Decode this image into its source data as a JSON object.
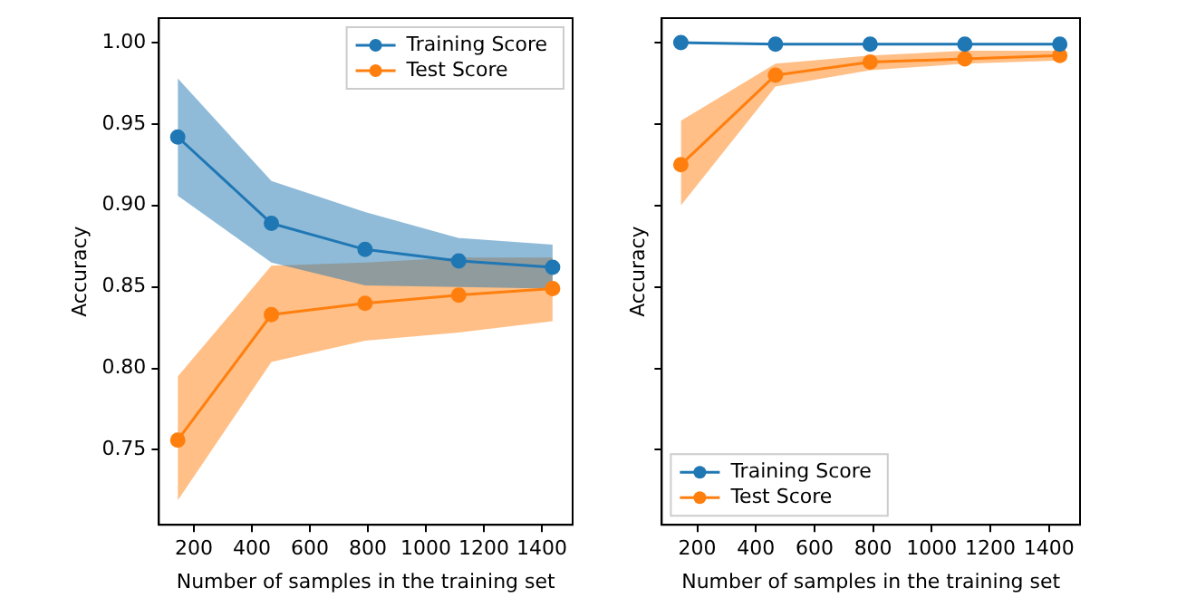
{
  "chart_data": [
    {
      "type": "line",
      "xlabel": "Number of samples in the training set",
      "ylabel": "Accuracy",
      "x": [
        144,
        467,
        790,
        1113,
        1437
      ],
      "xlim": [
        79,
        1506
      ],
      "xticks": [
        200,
        400,
        600,
        800,
        1000,
        1200,
        1400
      ],
      "ylim": [
        0.704,
        1.015
      ],
      "yticks": [
        0.75,
        {
          "value": 0.8,
          "label": "0.80"
        },
        0.85,
        {
          "value": 0.9,
          "label": "0.90"
        },
        0.95,
        {
          "value": 1.0,
          "label": "1.00"
        }
      ],
      "legend": "top right",
      "marker": "circle",
      "grid": false,
      "series": [
        {
          "name": "Training Score",
          "color": "#1f77b4",
          "values": [
            0.942,
            0.889,
            0.873,
            0.866,
            0.862
          ],
          "lower": [
            0.906,
            0.865,
            0.851,
            0.85,
            0.849
          ],
          "upper": [
            0.978,
            0.915,
            0.896,
            0.88,
            0.876
          ]
        },
        {
          "name": "Test Score",
          "color": "#ff7f0e",
          "values": [
            0.756,
            0.833,
            0.84,
            0.845,
            0.849
          ],
          "lower": [
            0.719,
            0.804,
            0.817,
            0.822,
            0.829
          ],
          "upper": [
            0.795,
            0.863,
            0.865,
            0.868,
            0.868
          ]
        }
      ]
    },
    {
      "type": "line",
      "xlabel": "Number of samples in the training set",
      "ylabel": "Accuracy",
      "x": [
        144,
        467,
        790,
        1113,
        1437
      ],
      "xlim": [
        79,
        1506
      ],
      "xticks": [
        200,
        400,
        600,
        800,
        1000,
        1200,
        1400
      ],
      "ylim": [
        0.704,
        1.015
      ],
      "yticks": [
        0.75,
        0.8,
        0.85,
        0.9,
        0.95,
        1.0
      ],
      "tick_labels": "x",
      "legend": "bottom left",
      "marker": "circle",
      "grid": false,
      "series": [
        {
          "name": "Training Score",
          "color": "#1f77b4",
          "values": [
            1.0,
            0.999,
            0.999,
            0.999,
            0.999
          ]
        },
        {
          "name": "Test Score",
          "color": "#ff7f0e",
          "values": [
            0.925,
            0.98,
            0.988,
            0.99,
            0.992
          ],
          "lower": [
            0.9,
            0.973,
            0.983,
            0.987,
            0.989
          ],
          "upper": [
            0.952,
            0.987,
            0.992,
            0.995,
            0.995
          ]
        }
      ]
    }
  ]
}
